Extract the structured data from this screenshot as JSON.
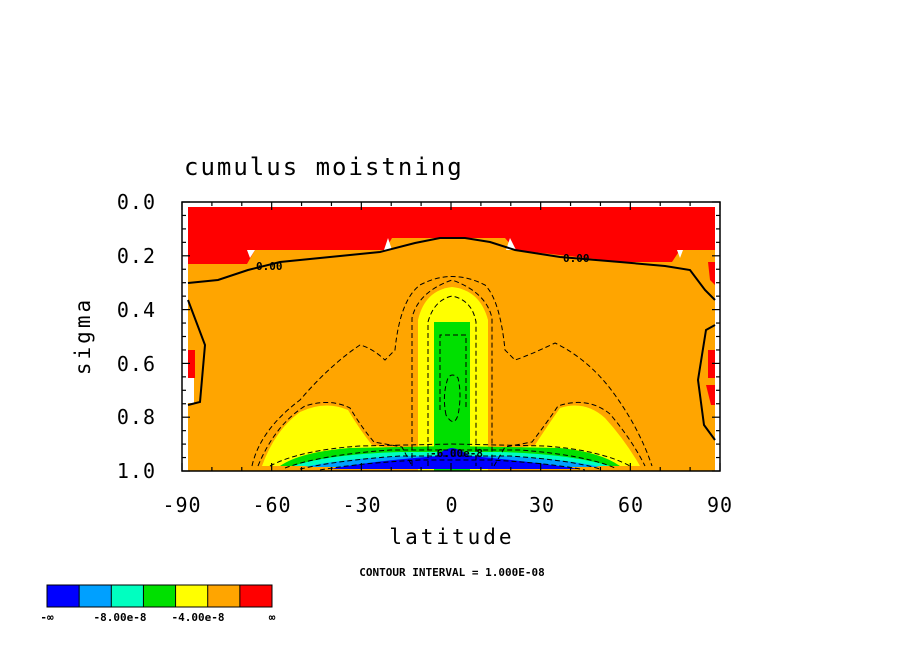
{
  "chart_data": {
    "type": "heatmap",
    "subtype": "filled-contour",
    "title": "cumulus moistning",
    "xlabel": "latitude",
    "ylabel": "sigma",
    "xlim": [
      -90,
      90
    ],
    "ylim": [
      1.0,
      0.0
    ],
    "y_axis_reversed": true,
    "x_ticks": [
      "-90",
      "-60",
      "-30",
      "0",
      "30",
      "60",
      "90"
    ],
    "y_ticks": [
      "0.0",
      "0.2",
      "0.4",
      "0.6",
      "0.8",
      "1.0"
    ],
    "contour_interval_text": "CONTOUR INTERVAL = 1.000E-08",
    "contour_labels": [
      "0.00",
      "0.00",
      "-6.00e-8"
    ],
    "colorbar": {
      "colors": [
        "#0000ff",
        "#00a0ff",
        "#00ffc0",
        "#00e000",
        "#ffff00",
        "#ffa500",
        "#ff0000"
      ],
      "tick_labels": [
        "-∞",
        "-8.00e-8",
        "-4.00e-8",
        "∞"
      ]
    },
    "regions": [
      {
        "level": "positive (red)",
        "color": "#ff0000",
        "area": "upper troposphere, sigma 0.02-0.22, most latitudes"
      },
      {
        "level": "0 to -2e-8 (orange)",
        "color": "#ffa500",
        "area": "bulk of domain"
      },
      {
        "level": "-2e-8 to -4e-8 (yellow)",
        "color": "#ffff00",
        "area": "equatorial column and subtropical lower lobes near 40S and 40N"
      },
      {
        "level": "-4e-8 to -6e-8 (green)",
        "color": "#00e000",
        "area": "equatorial column sigma 0.45-0.9 and near surface"
      },
      {
        "level": "below -8e-8 (blue)",
        "color": "#0000ff",
        "area": "near-surface band 40S-40N, strongest at equator"
      }
    ],
    "grid": false,
    "legend_position": "bottom-left colorbar"
  },
  "axes": {
    "x_ticks": [
      "-90",
      "-60",
      "-30",
      "0",
      "30",
      "60",
      "90"
    ],
    "y_ticks": [
      "0.0",
      "0.2",
      "0.4",
      "0.6",
      "0.8",
      "1.0"
    ]
  }
}
